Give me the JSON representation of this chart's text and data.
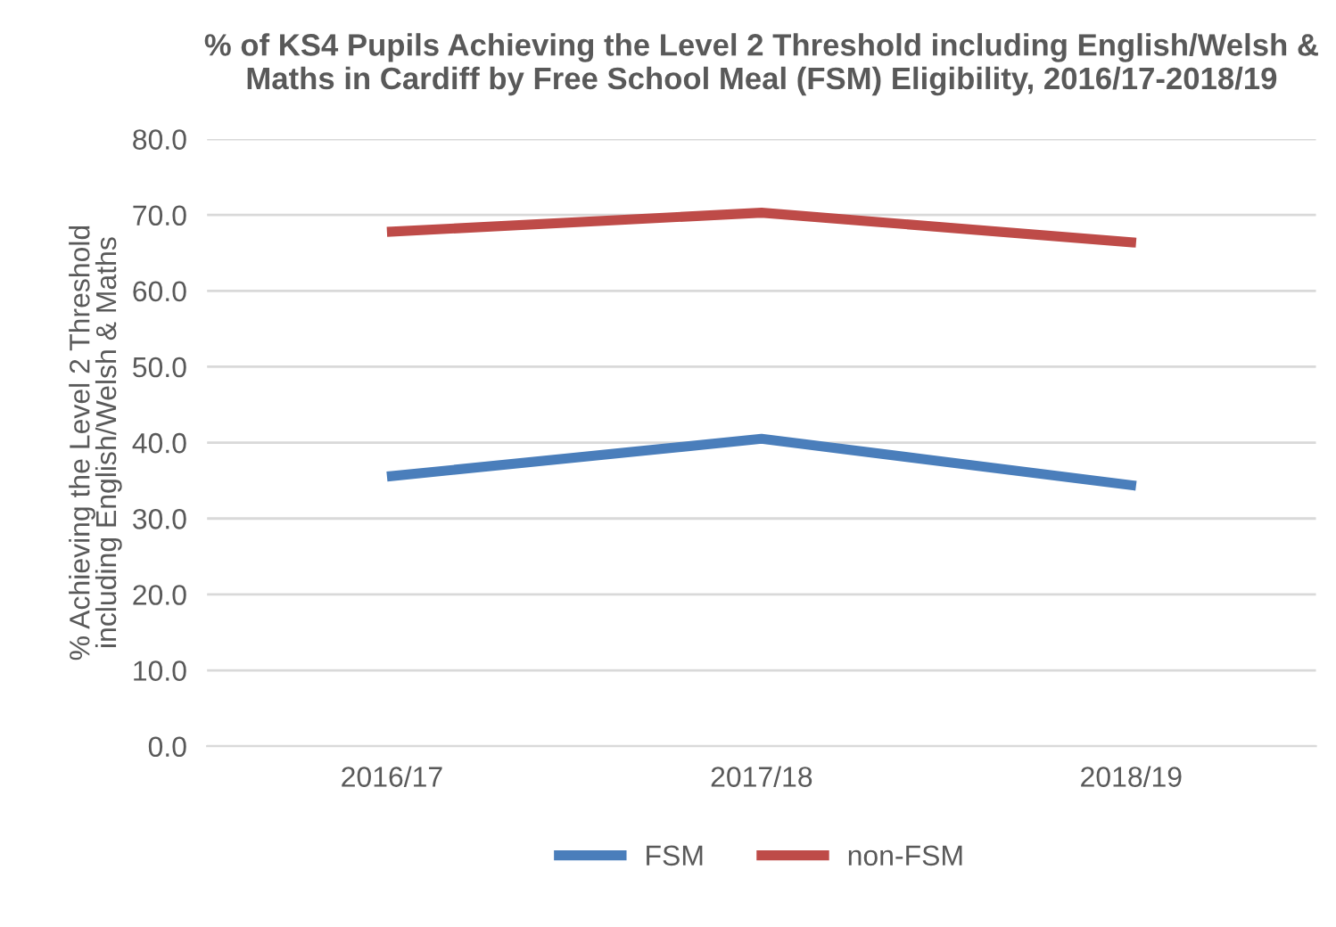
{
  "chart_data": {
    "type": "line",
    "title": "% of KS4 Pupils Achieving the Level 2 Threshold including English/Welsh & Maths in Cardiff by Free School Meal (FSM) Eligibility, 2016/17-2018/19",
    "ylabel": "% Achieving the Level 2 Threshold\nincluding English/Welsh & Maths",
    "categories": [
      "2016/17",
      "2017/18",
      "2018/19"
    ],
    "series": [
      {
        "name": "FSM",
        "color": "#4a7ebb",
        "values": [
          35.6,
          40.5,
          34.4
        ]
      },
      {
        "name": "non-FSM",
        "color": "#be4b48",
        "values": [
          67.8,
          70.3,
          66.4
        ]
      }
    ],
    "ylim": [
      0,
      80
    ],
    "yticks": [
      {
        "value": 0,
        "label": "0.0"
      },
      {
        "value": 10,
        "label": "10.0"
      },
      {
        "value": 20,
        "label": "20.0"
      },
      {
        "value": 30,
        "label": "30.0"
      },
      {
        "value": 40,
        "label": "40.0"
      },
      {
        "value": 50,
        "label": "50.0"
      },
      {
        "value": 60,
        "label": "60.0"
      },
      {
        "value": 70,
        "label": "70.0"
      },
      {
        "value": 80,
        "label": "80.0"
      }
    ],
    "grid": "y",
    "legend": "bottom",
    "marker": "none",
    "line_style": "solid"
  }
}
